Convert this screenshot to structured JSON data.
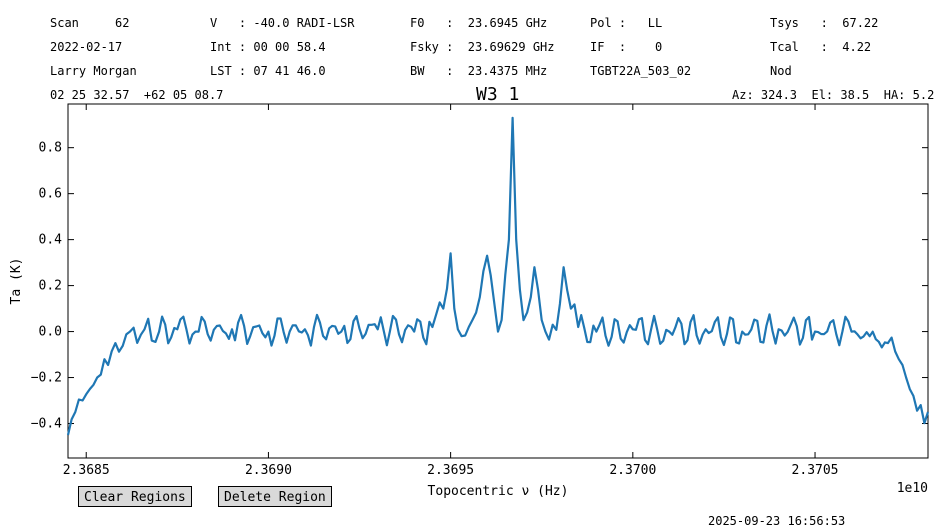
{
  "header": {
    "col1": [
      "Scan     62",
      "2022-02-17",
      "Larry Morgan"
    ],
    "col2": [
      "V   : -40.0 RADI-LSR",
      "Int : 00 00 58.4",
      "LST : 07 41 46.0"
    ],
    "col3": [
      "F0   :  23.6945 GHz",
      "Fsky :  23.69629 GHz",
      "BW   :  23.4375 MHz"
    ],
    "col4": [
      "Pol :   LL",
      "IF  :    0",
      "TGBT22A_503_02"
    ],
    "col5": [
      "Tsys   :  67.22",
      "Tcal   :  4.22",
      "Nod"
    ],
    "coords": "02 25 32.57  +62 05 08.7",
    "azel": "Az: 324.3  El: 38.5  HA: 5.2"
  },
  "chart_data": {
    "type": "line",
    "title": "W3 1",
    "xlabel": "Topocentric ν (Hz)",
    "ylabel": "Ta (K)",
    "x_offset_label": "1e10",
    "xlim": [
      2.36845,
      2.37081
    ],
    "ylim": [
      -0.55,
      0.99
    ],
    "xticks": [
      2.3685,
      2.369,
      2.3695,
      2.37,
      2.3705
    ],
    "xtick_labels": [
      "2.3685",
      "2.3690",
      "2.3695",
      "2.3700",
      "2.3705"
    ],
    "yticks": [
      -0.4,
      -0.2,
      0.0,
      0.2,
      0.4,
      0.6,
      0.8
    ],
    "ytick_labels": [
      "−0.4",
      "−0.2",
      "0.0",
      "0.2",
      "0.4",
      "0.6",
      "0.8"
    ],
    "color": "#1f77b4",
    "series": [
      {
        "name": "",
        "x": [
          2.36845,
          2.36847,
          2.36849,
          2.36851,
          2.36853,
          2.36855,
          2.36858,
          2.36862,
          2.36866,
          2.3687,
          2.36875,
          2.3688,
          2.3689,
          2.369,
          2.3691,
          2.3692,
          2.3693,
          2.3694,
          2.36945,
          2.36948,
          2.3695,
          2.36951,
          2.36953,
          2.36955,
          2.36958,
          2.3696,
          2.36962,
          2.36963,
          2.36964,
          2.36966,
          2.36967,
          2.36968,
          2.3697,
          2.36972,
          2.36973,
          2.36974,
          2.36975,
          2.36976,
          2.36978,
          2.3698,
          2.36981,
          2.36983,
          2.36985,
          2.3699,
          2.37,
          2.3701,
          2.3702,
          2.3703,
          2.3704,
          2.3705,
          2.3706,
          2.37065,
          2.3707,
          2.37073,
          2.37075,
          2.37077,
          2.37079,
          2.37081
        ],
        "y": [
          -0.45,
          -0.35,
          -0.3,
          -0.25,
          -0.2,
          -0.12,
          -0.05,
          0.0,
          0.01,
          0.0,
          0.01,
          0.0,
          0.01,
          0.0,
          0.01,
          0.0,
          0.01,
          0.0,
          0.02,
          0.1,
          0.34,
          0.1,
          -0.02,
          0.02,
          0.15,
          0.33,
          0.12,
          0.0,
          0.05,
          0.4,
          0.93,
          0.4,
          0.05,
          0.15,
          0.28,
          0.18,
          0.05,
          0.0,
          0.03,
          0.12,
          0.28,
          0.1,
          0.02,
          0.0,
          0.01,
          0.0,
          0.01,
          0.0,
          0.01,
          0.0,
          0.0,
          -0.02,
          -0.05,
          -0.12,
          -0.2,
          -0.28,
          -0.32,
          -0.35
        ]
      }
    ]
  },
  "buttons": {
    "clear": "Clear Regions",
    "delete": "Delete Region"
  },
  "timestamp": "2025-09-23 16:56:53"
}
